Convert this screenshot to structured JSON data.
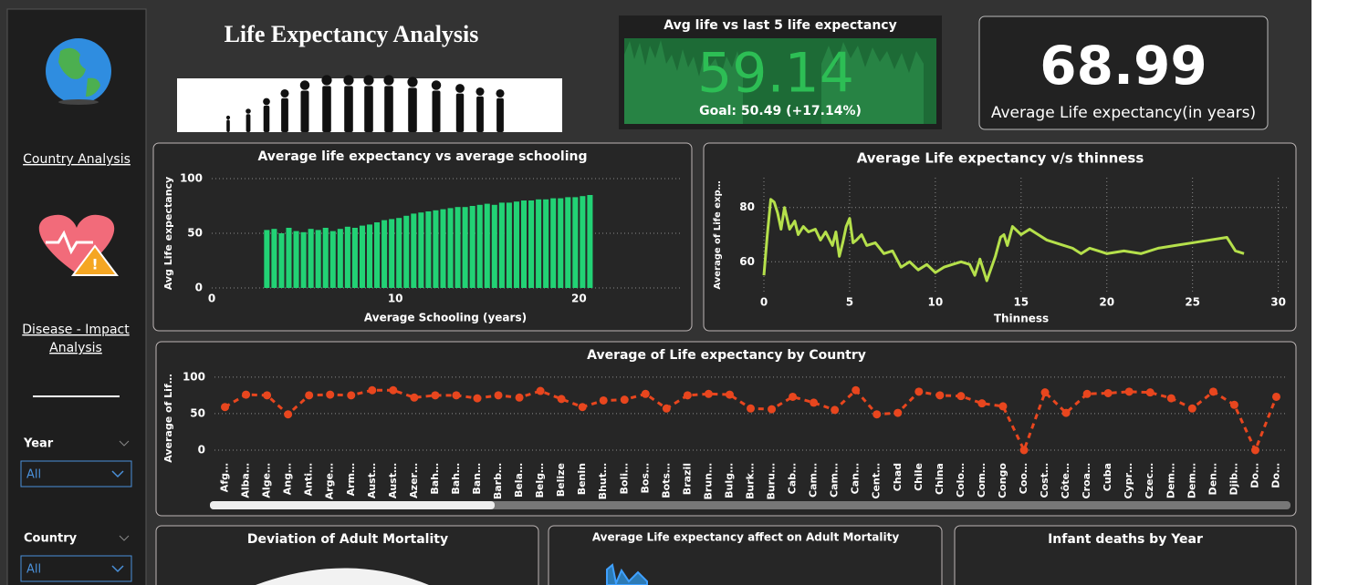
{
  "dashboard": {
    "title": "Life Expectancy Analysis"
  },
  "sidebar": {
    "links": [
      "Country Analysis",
      "Disease - Impact Analysis"
    ],
    "filters": [
      {
        "label": "Year",
        "value": "All"
      },
      {
        "label": "Country",
        "value": "All"
      }
    ]
  },
  "kpis": [
    {
      "title": "Avg life vs last 5 life expectancy",
      "value": 59.14,
      "goal": "Goal: 50.49 (+17.14%)"
    },
    {
      "value": 68.99,
      "label": "Average Life expectancy(in years)"
    }
  ],
  "panels": [
    "Deviation of Adult Mortality",
    "Average Life expectancy affect on Adult Mortality",
    "Infant deaths by Year"
  ],
  "chart_data": [
    {
      "type": "bar",
      "title": "Average life expectancy vs average schooling",
      "x_label": "Average Schooling (years)",
      "y_label": "Avg Life expectancy",
      "color": "#22d275",
      "x": [
        3,
        3.4,
        3.8,
        4.2,
        4.6,
        5,
        5.4,
        5.8,
        6.2,
        6.6,
        7,
        7.4,
        7.8,
        8.2,
        8.6,
        9,
        9.4,
        9.8,
        10.2,
        10.6,
        11,
        11.4,
        11.8,
        12.2,
        12.6,
        13,
        13.4,
        13.8,
        14.2,
        14.6,
        15,
        15.4,
        15.8,
        16.2,
        16.6,
        17,
        17.4,
        17.8,
        18.2,
        18.6,
        19,
        19.4,
        19.8,
        20.2,
        20.6
      ],
      "values": [
        53,
        54,
        50,
        55,
        52,
        51,
        54,
        53,
        55,
        52,
        54,
        56,
        55,
        57,
        58,
        60,
        62,
        63,
        64,
        66,
        68,
        69,
        70,
        71,
        72,
        73,
        74,
        74,
        75,
        76,
        77,
        76,
        78,
        78,
        79,
        80,
        80,
        81,
        81,
        82,
        82,
        83,
        83,
        84,
        85
      ],
      "xlim": [
        0,
        25.5
      ],
      "xticks": [
        0,
        10,
        20
      ],
      "ylim": [
        0,
        105
      ],
      "yticks": [
        0,
        50,
        100
      ],
      "grid": true
    },
    {
      "type": "line",
      "title": "Average Life expectancy v/s thinness",
      "x_label": "Thinness",
      "y_label": "Average of Life exp…",
      "color": "#b5e04b",
      "x": [
        0,
        0.2,
        0.4,
        0.6,
        0.8,
        1,
        1.2,
        1.5,
        1.8,
        2,
        2.3,
        2.6,
        3,
        3.3,
        3.6,
        4,
        4.2,
        4.4,
        4.6,
        4.8,
        5,
        5.2,
        5.4,
        5.7,
        6,
        6.5,
        7,
        7.5,
        8,
        8.5,
        9,
        9.5,
        10,
        10.5,
        11,
        11.5,
        12,
        12.3,
        12.6,
        13,
        13.5,
        13.8,
        14,
        14.2,
        14.5,
        15,
        15.5,
        16,
        16.5,
        17,
        17.5,
        18,
        18.5,
        19,
        19.5,
        20,
        21,
        22,
        23,
        24,
        25,
        26,
        27,
        27.5,
        28
      ],
      "values": [
        55,
        70,
        83,
        82,
        78,
        72,
        80,
        72,
        75,
        70,
        73,
        71,
        72,
        68,
        71,
        66,
        71,
        62,
        67,
        73,
        76,
        67,
        68,
        70,
        66,
        67,
        63,
        64,
        58,
        60,
        57,
        59,
        56,
        58,
        59,
        60,
        59,
        55,
        61,
        53,
        62,
        69,
        70,
        66,
        73,
        70,
        72,
        70,
        68,
        67,
        66,
        65,
        63,
        65,
        64,
        63,
        64,
        63,
        65,
        66,
        67,
        68,
        69,
        64,
        63
      ],
      "xlim": [
        0,
        30.5
      ],
      "xticks": [
        0,
        5,
        10,
        15,
        20,
        25,
        30
      ],
      "ylim": [
        49,
        91
      ],
      "yticks": [
        60,
        80
      ],
      "grid": true
    },
    {
      "type": "line",
      "title": "Average of Life expectancy by Country",
      "y_label": "Average of Lif…",
      "color": "#e8461e",
      "markers": true,
      "line_style": "dashed",
      "categories": [
        "Afg…",
        "Alba…",
        "Alge…",
        "Ang…",
        "Anti…",
        "Arge…",
        "Arm…",
        "Aust…",
        "Aust…",
        "Azer…",
        "Bah…",
        "Bah…",
        "Ban…",
        "Barb…",
        "Bela…",
        "Belg…",
        "Belize",
        "Benin",
        "Bhut…",
        "Boli…",
        "Bos…",
        "Bots…",
        "Brazil",
        "Brun…",
        "Bulg…",
        "Burk…",
        "Buru…",
        "Cab…",
        "Cam…",
        "Cam…",
        "Can…",
        "Cent…",
        "Chad",
        "Chile",
        "China",
        "Colo…",
        "Com…",
        "Congo",
        "Coo…",
        "Cost…",
        "Côte…",
        "Croa…",
        "Cuba",
        "Cypr…",
        "Czec…",
        "Dem…",
        "Dem…",
        "Den…",
        "Djib…",
        "Do…",
        "Do…"
      ],
      "values": [
        59,
        76,
        75,
        49,
        75,
        76,
        75,
        82,
        82,
        72,
        75,
        75,
        71,
        75,
        72,
        81,
        70,
        59,
        68,
        69,
        77,
        57,
        75,
        77,
        76,
        57,
        56,
        73,
        65,
        55,
        82,
        49,
        51,
        80,
        75,
        74,
        64,
        60,
        0,
        79,
        51,
        77,
        78,
        80,
        79,
        71,
        57,
        80,
        62,
        0,
        73
      ],
      "ylim": [
        0,
        111
      ],
      "yticks": [
        0,
        50,
        100
      ],
      "grid": true
    }
  ]
}
